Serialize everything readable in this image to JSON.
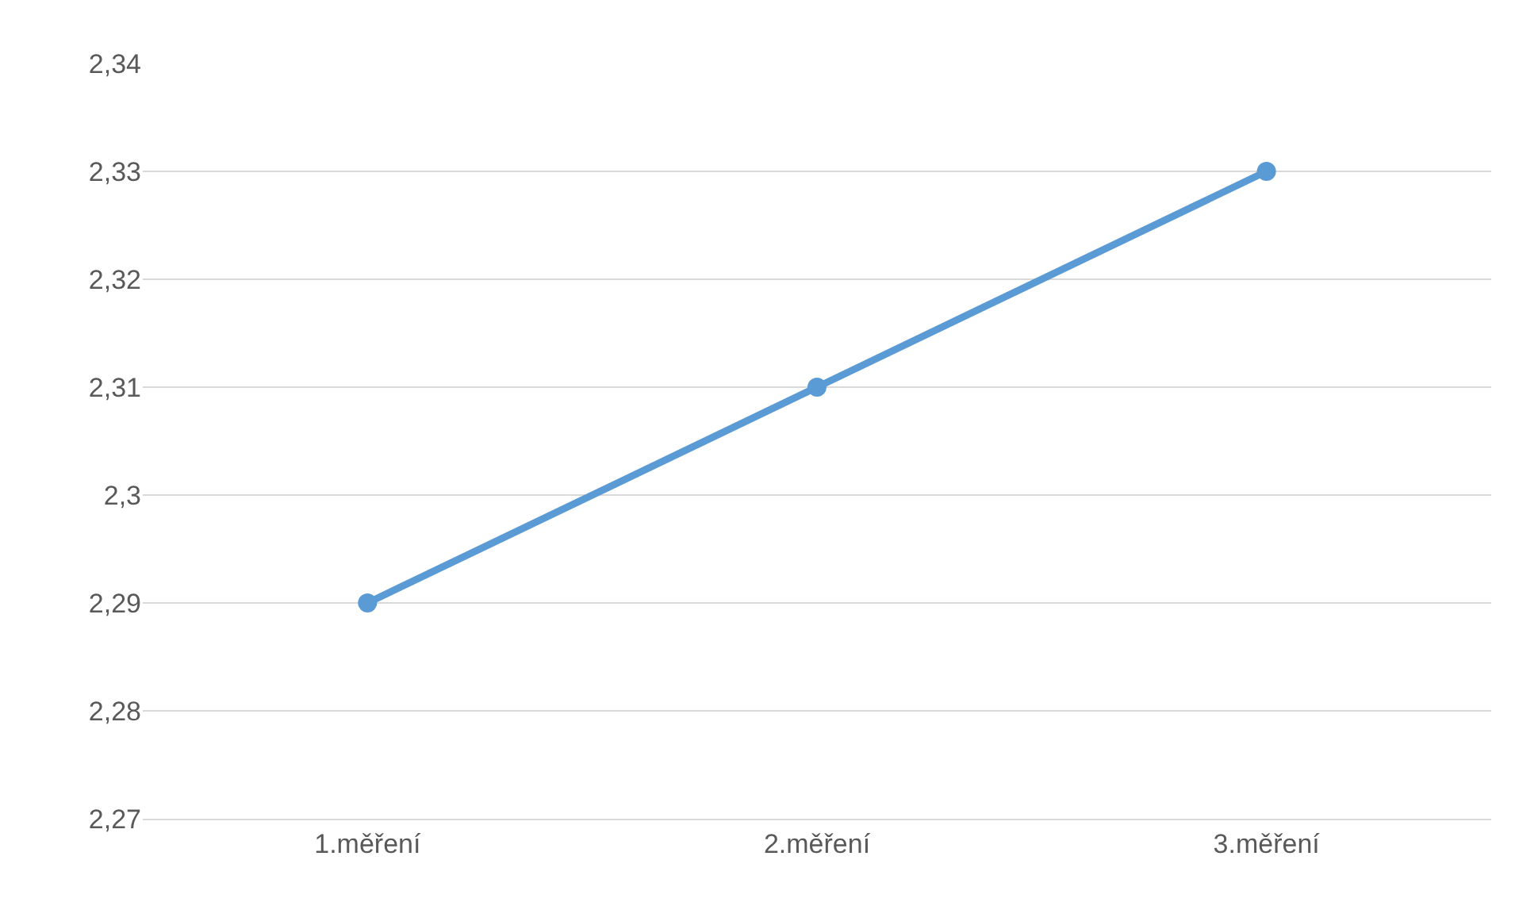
{
  "chart_data": {
    "type": "line",
    "categories": [
      "1.měření",
      "2.měření",
      "3.měření"
    ],
    "series": [
      {
        "color": "#5b9bd5",
        "values": [
          2.29,
          2.31,
          2.33
        ]
      }
    ],
    "ylim": [
      2.27,
      2.34
    ],
    "yticks": [
      {
        "value": 2.27,
        "label": "2,27"
      },
      {
        "value": 2.28,
        "label": "2,28"
      },
      {
        "value": 2.29,
        "label": "2,29"
      },
      {
        "value": 2.3,
        "label": "2,3"
      },
      {
        "value": 2.31,
        "label": "2,31"
      },
      {
        "value": 2.32,
        "label": "2,32"
      },
      {
        "value": 2.33,
        "label": "2,33"
      },
      {
        "value": 2.34,
        "label": "2,34"
      }
    ],
    "grid": "y",
    "legend": false,
    "marker": "circle",
    "line_style": "solid"
  }
}
